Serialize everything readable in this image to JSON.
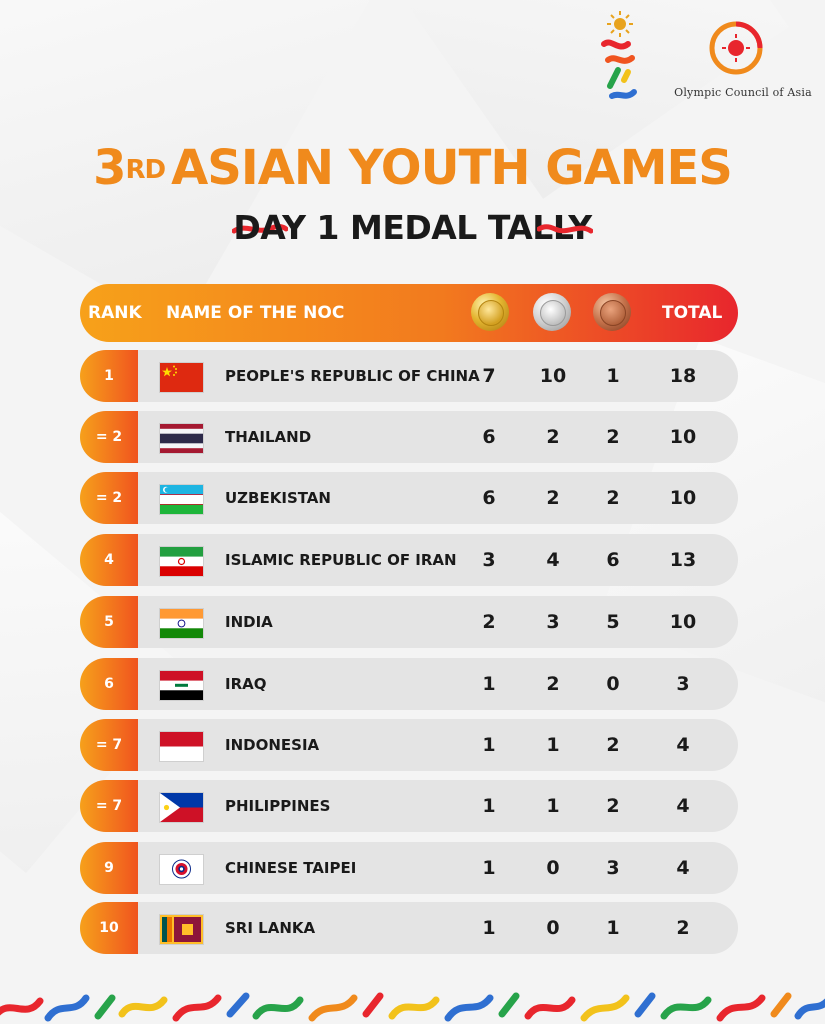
{
  "title": {
    "ordinal": "3",
    "ordinal_suffix": "RD",
    "text": "ASIAN YOUTH GAMES"
  },
  "subtitle": "DAY 1 MEDAL TALLY",
  "org": {
    "name": "Olympic Council of Asia"
  },
  "table": {
    "headers": {
      "rank": "RANK",
      "name": "NAME OF THE NOC",
      "gold_icon": "gold-medal-icon",
      "silver_icon": "silver-medal-icon",
      "bronze_icon": "bronze-medal-icon",
      "total": "TOTAL"
    },
    "rows": [
      {
        "rank": "1",
        "flag": "china-flag-icon",
        "country": "PEOPLE'S REPUBLIC OF CHINA",
        "gold": "7",
        "silver": "10",
        "bronze": "1",
        "total": "18"
      },
      {
        "rank": "= 2",
        "flag": "thailand-flag-icon",
        "country": "THAILAND",
        "gold": "6",
        "silver": "2",
        "bronze": "2",
        "total": "10"
      },
      {
        "rank": "= 2",
        "flag": "uzbekistan-flag-icon",
        "country": "UZBEKISTAN",
        "gold": "6",
        "silver": "2",
        "bronze": "2",
        "total": "10"
      },
      {
        "rank": "4",
        "flag": "iran-flag-icon",
        "country": "ISLAMIC REPUBLIC OF IRAN",
        "gold": "3",
        "silver": "4",
        "bronze": "6",
        "total": "13"
      },
      {
        "rank": "5",
        "flag": "india-flag-icon",
        "country": "INDIA",
        "gold": "2",
        "silver": "3",
        "bronze": "5",
        "total": "10"
      },
      {
        "rank": "6",
        "flag": "iraq-flag-icon",
        "country": "IRAQ",
        "gold": "1",
        "silver": "2",
        "bronze": "0",
        "total": "3"
      },
      {
        "rank": "= 7",
        "flag": "indonesia-flag-icon",
        "country": "INDONESIA",
        "gold": "1",
        "silver": "1",
        "bronze": "2",
        "total": "4"
      },
      {
        "rank": "= 7",
        "flag": "philippines-flag-icon",
        "country": "PHILIPPINES",
        "gold": "1",
        "silver": "1",
        "bronze": "2",
        "total": "4"
      },
      {
        "rank": "9",
        "flag": "chinese-taipei-flag-icon",
        "country": "CHINESE TAIPEI",
        "gold": "1",
        "silver": "0",
        "bronze": "3",
        "total": "4"
      },
      {
        "rank": "10",
        "flag": "sri-lanka-flag-icon",
        "country": "SRI LANKA",
        "gold": "1",
        "silver": "0",
        "bronze": "1",
        "total": "2"
      }
    ]
  },
  "colors": {
    "title_orange": "#f08a1c",
    "header_start": "#f7a11a",
    "header_end": "#e8262d",
    "row_bg": "#e4e4e4",
    "text": "#1a1a1a"
  }
}
